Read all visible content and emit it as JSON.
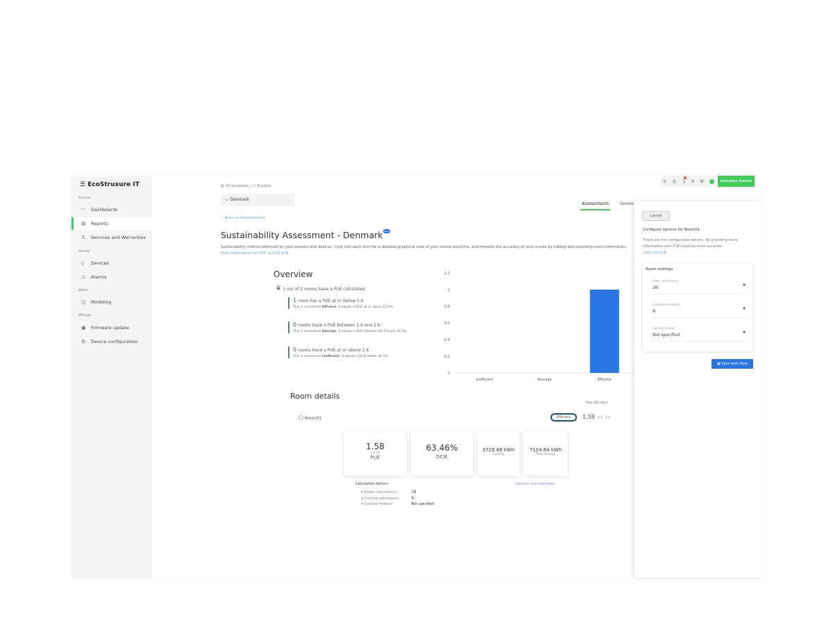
{
  "app": {
    "logo": "EcoStruxure IT"
  },
  "sidebar": {
    "sections": [
      {
        "label": "Analyze",
        "items": [
          {
            "label": "Dashboards",
            "icon": "gauge-icon"
          },
          {
            "label": "Reports",
            "icon": "report-icon",
            "active": true
          },
          {
            "label": "Services and Warranties",
            "icon": "service-icon"
          }
        ]
      },
      {
        "label": "Monitor",
        "items": [
          {
            "label": "Devices",
            "icon": "device-icon"
          },
          {
            "label": "Alarms",
            "icon": "alarm-icon"
          }
        ]
      },
      {
        "label": "Model",
        "items": [
          {
            "label": "Modeling",
            "icon": "modeling-icon"
          }
        ]
      },
      {
        "label": "Manage",
        "items": [
          {
            "label": "Firmware update",
            "icon": "firmware-icon"
          },
          {
            "label": "Device configuration",
            "icon": "config-icon"
          }
        ]
      }
    ]
  },
  "breadcrumb": {
    "root": "All locations",
    "parent": "Europe"
  },
  "location_select": {
    "value": "Denmark"
  },
  "tabs": [
    {
      "label": "Assessments",
      "active": true
    },
    {
      "label": "Sensors"
    }
  ],
  "back_link": "Back to Assessments",
  "title": "Sustainability Assessment - Denmark",
  "beta_badge": "Beta",
  "description": "Sustainability metrics informed by your sensors and devices. Click into each item for a detailed graphical view of your scores overtime, and improve the accuracy of your scores by editing and providing more information.",
  "more_info_link": "More information on PUE and DCiE",
  "overview": {
    "title": "Overview",
    "summary": "1 out of 2 rooms have a PUE calculated",
    "blocks": [
      {
        "count": "1",
        "text": "room has a PUE at or below 1.6",
        "prefix": "This is considered",
        "level": "Efficient",
        "suffix": ". It equals a DCiE at or above 62.5%."
      },
      {
        "count": "0",
        "text": "rooms have a PUE between 1.6 and 2.6",
        "prefix": "This is considered",
        "level": "Average",
        "suffix": ". It equals a DCiE between 62.5% and 38.5%."
      },
      {
        "count": "0",
        "text": "rooms have a PUE at or above 2.6",
        "prefix": "This is considered",
        "level": "Inefficient",
        "suffix": ". It equals a DCiE below 38.5%."
      }
    ]
  },
  "chart_data": {
    "type": "bar",
    "categories": [
      "Inefficient",
      "Average",
      "Efficient"
    ],
    "values": [
      0,
      0,
      1
    ],
    "ylim": [
      0,
      1.2
    ],
    "yticks": [
      "0",
      "0.2",
      "0.4",
      "0.6",
      "0.8",
      "1",
      "1.2"
    ],
    "color": "#2a77e4",
    "grid": false
  },
  "room_details": {
    "title": "Room details",
    "period": "Past 365 days",
    "room": "Room01",
    "badge": "Efficient",
    "pue": "1.58",
    "pue_err": "±0.26",
    "cards": [
      {
        "value": "1.58",
        "sub": "±0.26",
        "label": "PUE"
      },
      {
        "value": "63.46%",
        "label": "DCiE"
      },
      {
        "value": "3728.88 kWh",
        "label": "Cooling"
      },
      {
        "value": "7104.64 kWh",
        "label": "Total energy"
      }
    ],
    "calc_title": "Calculation factors",
    "improve_link": "Improve your estimate",
    "factors": [
      {
        "k": "Power redundancy:",
        "v": "2N"
      },
      {
        "k": "Cooling redundancy:",
        "v": "N"
      },
      {
        "k": "Cooling medium:",
        "v": "Not specified"
      }
    ]
  },
  "topbar": {
    "notification_count": "3",
    "brand": "Schneider Electric"
  },
  "panel": {
    "cancel": "Cancel",
    "title": "Configure options for Room01",
    "desc": "These are the configurable options. By providing more information your PUE could be more accurate.",
    "learn_more": "Learn more",
    "settings_title": "Room settings",
    "fields": [
      {
        "label": "Power redundancy",
        "value": "2N"
      },
      {
        "label": "Cooling redundancy",
        "value": "N"
      },
      {
        "label": "Cooling medium",
        "value": "Not specified"
      }
    ],
    "save": "Save and close"
  }
}
